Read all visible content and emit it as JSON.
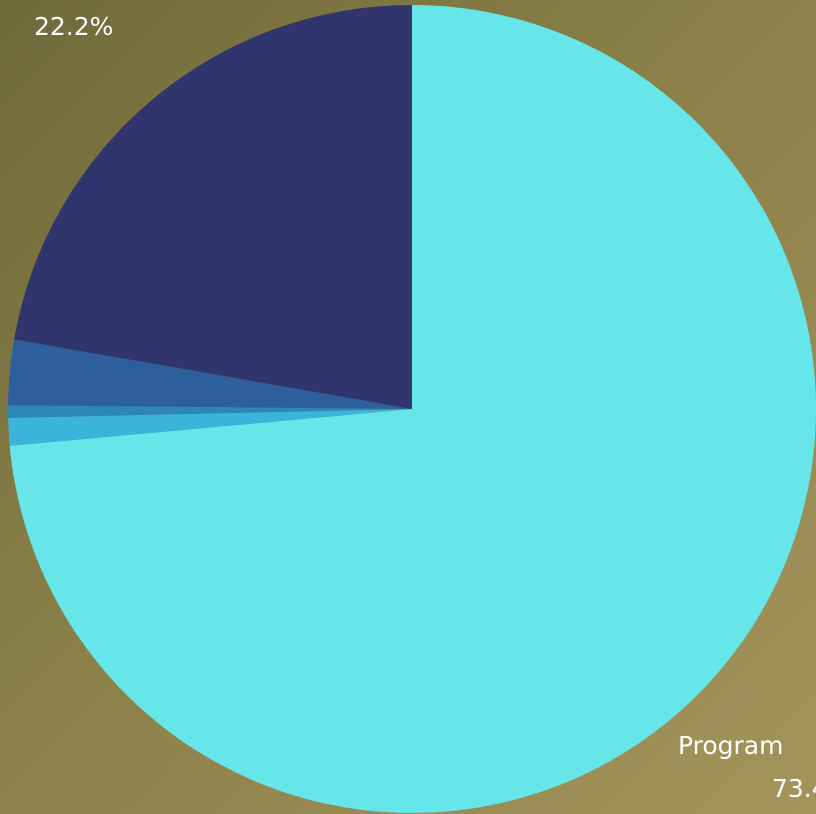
{
  "chart_data": {
    "type": "pie",
    "categories": [
      "Program",
      null,
      null,
      null,
      null
    ],
    "values": [
      73.4,
      1.1,
      0.5,
      2.6,
      22.2
    ],
    "value_labels": [
      "73.4",
      null,
      null,
      null,
      "22.2%"
    ],
    "colors": [
      "#67e6ea",
      "#3ab4d8",
      "#2b86ba",
      "#2d5f9c",
      "#31356e"
    ]
  }
}
